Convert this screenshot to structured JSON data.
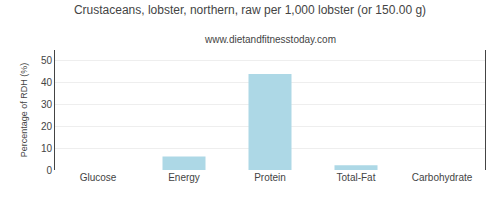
{
  "chart_data": {
    "type": "bar",
    "title": "Crustaceans, lobster, northern, raw per 1,000 lobster (or 150.00 g)",
    "subtitle": "www.dietandfitnesstoday.com",
    "categories": [
      "Glucose",
      "Energy",
      "Protein",
      "Total-Fat",
      "Carbohydrate"
    ],
    "values": [
      0.0,
      6.2,
      44.0,
      2.2,
      0.0
    ],
    "color": "#add8e6",
    "ylabel": "Percentage of RDH (%)",
    "ylim": [
      0,
      55
    ],
    "yticks": [
      0,
      10,
      20,
      30,
      40,
      50
    ],
    "grid": true
  }
}
